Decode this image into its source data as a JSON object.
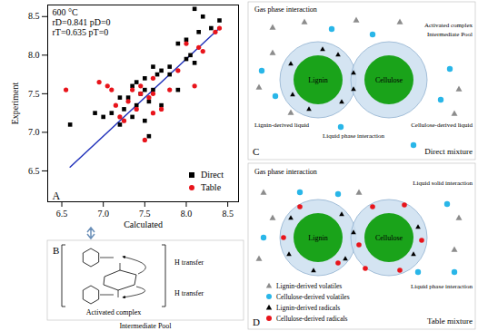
{
  "chart_data": {
    "type": "scatter",
    "panel": "A",
    "annotations": [
      "600 °C",
      "rD=0.841 pD=0",
      "rT=0.635 pT=0"
    ],
    "x_label": "Calculated",
    "y_label": "Experiment",
    "xlim": [
      6.33,
      8.63
    ],
    "ylim": [
      6.1,
      8.65
    ],
    "xticks": [
      6.5,
      {
        "value": 7,
        "label": "7.0"
      },
      7.5,
      {
        "value": 8,
        "label": "8.0"
      },
      8.5
    ],
    "yticks": [
      6.5,
      {
        "value": 7,
        "label": "7.0"
      },
      7.5,
      {
        "value": 8,
        "label": "8.0"
      },
      8.5
    ],
    "legend": "bottom-right",
    "series": [
      {
        "name": "Direct",
        "color": "#000000",
        "marker": "square",
        "x": [
          8.1,
          8.2,
          8.4,
          8.3,
          8.15,
          8.0,
          7.9,
          8.05,
          7.7,
          7.6,
          7.8,
          7.5,
          7.4,
          7.35,
          7.5,
          7.6,
          7.45,
          7.3,
          7.2,
          7.55,
          7.4,
          7.7,
          7.25,
          7.1,
          7.35,
          7.5,
          7.0,
          6.9,
          7.2,
          6.6,
          7.55,
          7.9,
          8.0,
          8.1,
          7.8,
          7.65
        ],
        "y": [
          8.6,
          8.5,
          8.45,
          8.35,
          8.3,
          8.2,
          8.15,
          8.0,
          7.8,
          7.85,
          7.75,
          7.7,
          7.65,
          7.6,
          7.55,
          7.55,
          7.5,
          7.45,
          7.45,
          7.4,
          7.35,
          7.35,
          7.3,
          7.25,
          7.2,
          7.15,
          7.2,
          7.25,
          7.1,
          7.1,
          6.95,
          7.55,
          7.95,
          7.9,
          7.85,
          7.75
        ]
      },
      {
        "name": "Table",
        "color": "#e8141b",
        "marker": "circle",
        "x": [
          6.55,
          6.95,
          7.05,
          7.1,
          7.35,
          7.45,
          7.55,
          7.6,
          7.3,
          7.4,
          7.25,
          7.2,
          7.5,
          7.6,
          7.7,
          7.8,
          8.1,
          7.9,
          8.15,
          8.2,
          8.35,
          8.4,
          8.0,
          7.45,
          7.6,
          7.15
        ],
        "y": [
          7.55,
          7.65,
          7.6,
          7.55,
          7.55,
          7.5,
          7.45,
          7.5,
          7.4,
          7.3,
          7.15,
          7.2,
          6.9,
          7.25,
          7.3,
          7.55,
          7.6,
          7.8,
          8.1,
          8.05,
          8.3,
          8.35,
          8.15,
          7.6,
          7.7,
          7.35
        ]
      }
    ],
    "fit_line": {
      "color": "#2233bb",
      "x": [
        6.6,
        8.4
      ],
      "y": [
        6.55,
        8.35
      ]
    }
  },
  "diagrams": {
    "B": {
      "panel": "B",
      "labels": [
        "H transfer",
        "H transfer"
      ],
      "caption": "Activated complex",
      "title": "Intermediate Pool"
    },
    "C": {
      "panel": "C",
      "gas": "Gas phase interaction",
      "particles": [
        "Lignin",
        "Cellulose"
      ],
      "labels": {
        "lignin_liquid": "Lignin-derived liquid",
        "activated": "Activated complex",
        "pool": "Intermediate Pool",
        "cellulose_liquid": "Cellulose-derived liquid",
        "liquid": "Liquid phase interaction"
      },
      "caption": "Direct mixture"
    },
    "D": {
      "panel": "D",
      "gas": "Gas phase interaction",
      "solid": "Liquid solid interaction",
      "particles": [
        "Lignin",
        "Cellulose"
      ],
      "liquid": "Liquid phase interaction",
      "key_items": [
        {
          "name": "Lignin-derived volatiles",
          "color": "#8c8c8c",
          "marker": "triangle"
        },
        {
          "name": "Cellulose-derived volatiles",
          "color": "#29b6e8",
          "marker": "circle"
        },
        {
          "name": "Lignin-derived radicals",
          "color": "#000000",
          "marker": "triangle"
        },
        {
          "name": "Cellulose-derived radicals",
          "color": "#e8141b",
          "marker": "circle"
        }
      ],
      "caption": "Table mixture"
    }
  }
}
